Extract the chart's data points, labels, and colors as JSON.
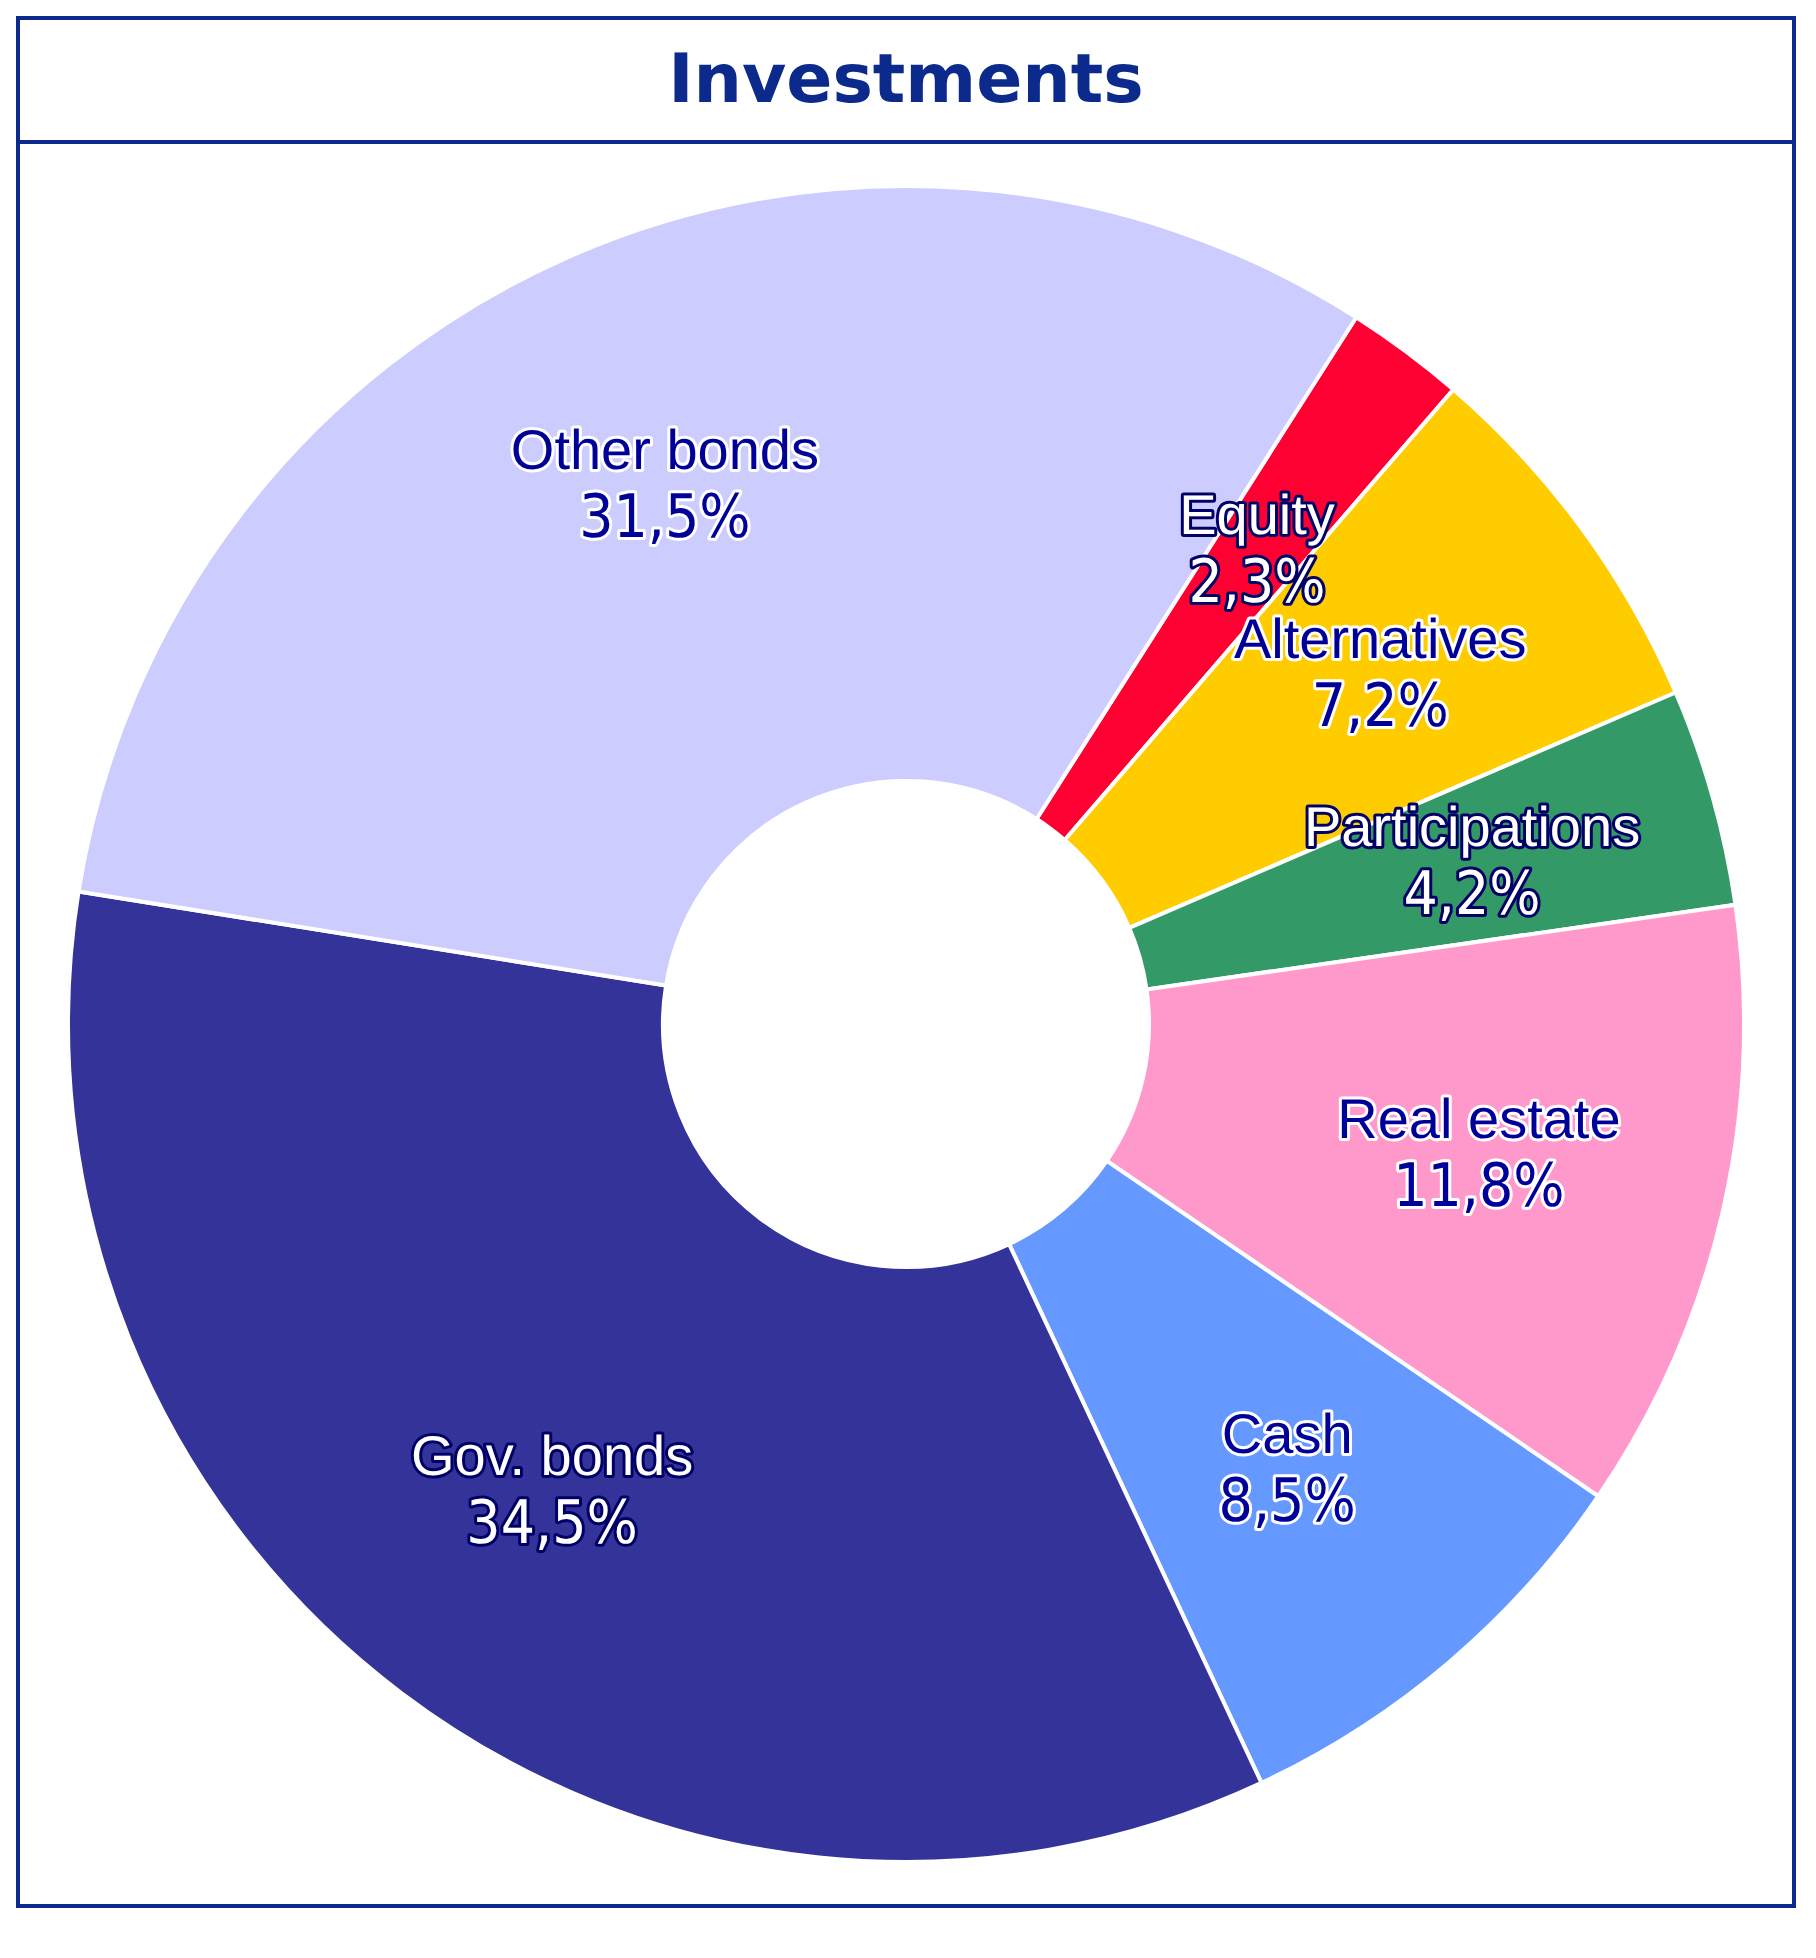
{
  "chart_data": {
    "type": "donut",
    "title": "Investments",
    "categories": [
      "Equity",
      "Alternatives",
      "Participations",
      "Real estate",
      "Cash",
      "Gov. bonds",
      "Other bonds"
    ],
    "values": [
      2.3,
      7.2,
      4.2,
      11.8,
      8.5,
      34.5,
      31.5
    ],
    "colors": [
      "#ff0033",
      "#ffcc00",
      "#339966",
      "#ff99cc",
      "#6699ff",
      "#333399",
      "#ccccff"
    ],
    "value_labels": [
      "2,3%",
      "7,2%",
      "4,2%",
      "11,8%",
      "8,5%",
      "34,5%",
      "31,5%"
    ],
    "legend": false
  }
}
